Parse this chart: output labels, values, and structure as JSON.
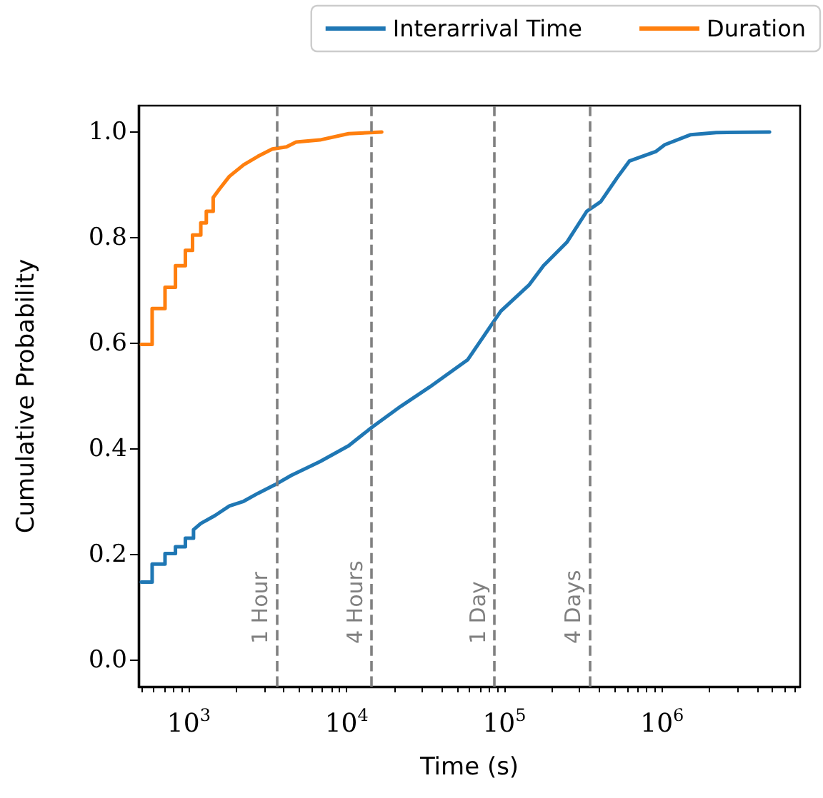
{
  "chart_data": {
    "type": "line",
    "xlabel": "Time (s)",
    "ylabel": "Cumulative Probability",
    "log": "x",
    "grid": false,
    "legend": "top right",
    "marker": "none",
    "line_style": "solid",
    "xlim": [
      480,
      7500000
    ],
    "ylim": [
      -0.05,
      1.05
    ],
    "xticks": [
      {
        "value": 500,
        "label": null
      },
      {
        "value": 600,
        "label": null
      },
      {
        "value": 700,
        "label": null
      },
      {
        "value": 800,
        "label": null
      },
      {
        "value": 900,
        "label": null
      },
      {
        "value": 1000,
        "label": "10$^{3}$"
      },
      {
        "value": 2000,
        "label": null
      },
      {
        "value": 3000,
        "label": null
      },
      {
        "value": 4000,
        "label": null
      },
      {
        "value": 5000,
        "label": null
      },
      {
        "value": 6000,
        "label": null
      },
      {
        "value": 7000,
        "label": null
      },
      {
        "value": 8000,
        "label": null
      },
      {
        "value": 9000,
        "label": null
      },
      {
        "value": 10000,
        "label": "10$^{4}$"
      },
      {
        "value": 20000,
        "label": null
      },
      {
        "value": 30000,
        "label": null
      },
      {
        "value": 40000,
        "label": null
      },
      {
        "value": 50000,
        "label": null
      },
      {
        "value": 60000,
        "label": null
      },
      {
        "value": 70000,
        "label": null
      },
      {
        "value": 80000,
        "label": null
      },
      {
        "value": 90000,
        "label": null
      },
      {
        "value": 100000,
        "label": "10$^{5}$"
      },
      {
        "value": 200000,
        "label": null
      },
      {
        "value": 300000,
        "label": null
      },
      {
        "value": 400000,
        "label": null
      },
      {
        "value": 500000,
        "label": null
      },
      {
        "value": 600000,
        "label": null
      },
      {
        "value": 700000,
        "label": null
      },
      {
        "value": 800000,
        "label": null
      },
      {
        "value": 900000,
        "label": null
      },
      {
        "value": 1000000,
        "label": "10$^{6}$"
      },
      {
        "value": 2000000,
        "label": null
      },
      {
        "value": 3000000,
        "label": null
      },
      {
        "value": 4000000,
        "label": null
      },
      {
        "value": 5000000,
        "label": null
      },
      {
        "value": 6000000,
        "label": null
      },
      {
        "value": 7000000,
        "label": null
      }
    ],
    "yticks": [
      {
        "value": 0,
        "label": "0.0"
      },
      {
        "value": 0.2,
        "label": "0.2"
      },
      {
        "value": 0.4,
        "label": "0.4"
      },
      {
        "value": 0.6,
        "label": "0.6"
      },
      {
        "value": 0.8,
        "label": "0.8"
      },
      {
        "value": 1,
        "label": "1.0"
      }
    ],
    "series": [
      {
        "name": "Interarrival Time",
        "color": "#1f77b4",
        "x": [
          500,
          585,
          585,
          706,
          706,
          822,
          822,
          950,
          950,
          1070,
          1070,
          1190,
          1465,
          1806,
          2225,
          2740,
          3500,
          4460,
          6770,
          10300,
          14600,
          22100,
          33500,
          58600,
          77000,
          95000,
          144000,
          177000,
          250000,
          333000,
          408000,
          520000,
          620000,
          910000,
          1040000,
          1520000,
          2200000,
          4800000
        ],
        "values": [
          0.148,
          0.148,
          0.182,
          0.182,
          0.202,
          0.202,
          0.215,
          0.215,
          0.231,
          0.231,
          0.247,
          0.259,
          0.274,
          0.292,
          0.301,
          0.316,
          0.332,
          0.35,
          0.376,
          0.406,
          0.442,
          0.481,
          0.517,
          0.569,
          0.621,
          0.661,
          0.711,
          0.747,
          0.792,
          0.85,
          0.868,
          0.914,
          0.945,
          0.963,
          0.976,
          0.995,
          0.999,
          1.0
        ]
      },
      {
        "name": "Duration",
        "color": "#ff7f0e",
        "x": [
          500,
          585,
          585,
          706,
          706,
          822,
          822,
          950,
          950,
          1055,
          1055,
          1190,
          1190,
          1290,
          1290,
          1426,
          1426,
          1570,
          1806,
          2225,
          2740,
          3380,
          4160,
          4780,
          6770,
          10300,
          16700
        ],
        "values": [
          0.598,
          0.598,
          0.666,
          0.666,
          0.706,
          0.706,
          0.747,
          0.747,
          0.776,
          0.776,
          0.805,
          0.805,
          0.828,
          0.828,
          0.85,
          0.85,
          0.876,
          0.893,
          0.916,
          0.938,
          0.954,
          0.968,
          0.972,
          0.981,
          0.985,
          0.997,
          1.0
        ]
      }
    ],
    "ref_lines": [
      {
        "axis": "x",
        "value": 3600,
        "label": "1 Hour",
        "color": "#808080",
        "line_style": "dashed"
      },
      {
        "axis": "x",
        "value": 14400,
        "label": "4 Hours",
        "color": "#808080",
        "line_style": "dashed"
      },
      {
        "axis": "x",
        "value": 86400,
        "label": "1 Day",
        "color": "#808080",
        "line_style": "dashed"
      },
      {
        "axis": "x",
        "value": 345600,
        "label": "4 Days",
        "color": "#808080",
        "line_style": "dashed"
      }
    ]
  }
}
